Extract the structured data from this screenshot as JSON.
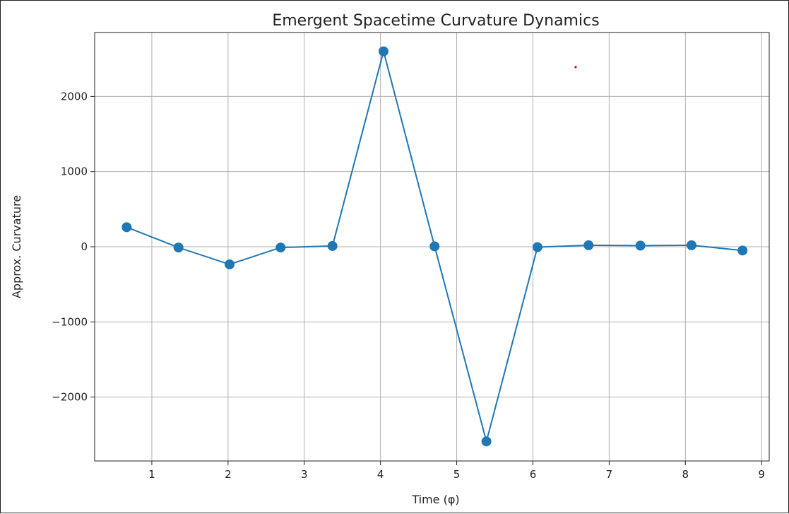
{
  "chart_data": {
    "type": "line",
    "title": "Emergent Spacetime Curvature Dynamics",
    "xlabel": "Time (φ)",
    "ylabel": "Approx. Curvature",
    "xlim": [
      0.25,
      9.1
    ],
    "ylim": [
      -2850,
      2850
    ],
    "xticks": [
      1,
      2,
      3,
      4,
      5,
      6,
      7,
      8,
      9
    ],
    "xtick_labels": [
      "1",
      "2",
      "3",
      "4",
      "5",
      "6",
      "7",
      "8",
      "9"
    ],
    "yticks": [
      -2000,
      -1000,
      0,
      1000,
      2000
    ],
    "ytick_labels": [
      "−2000",
      "−1000",
      "0",
      "1000",
      "2000"
    ],
    "grid": true,
    "series": [
      {
        "color": "#1f77b4",
        "marker": "circle",
        "x": [
          0.67,
          1.35,
          2.02,
          2.69,
          3.37,
          4.04,
          4.71,
          5.39,
          6.06,
          6.73,
          7.41,
          8.08,
          8.75
        ],
        "y": [
          260,
          -10,
          -235,
          -10,
          10,
          2600,
          5,
          -2590,
          -5,
          20,
          15,
          20,
          -50
        ]
      }
    ],
    "annotation_point": {
      "x": 6.56,
      "y": 2390,
      "color": "#e00000"
    }
  }
}
